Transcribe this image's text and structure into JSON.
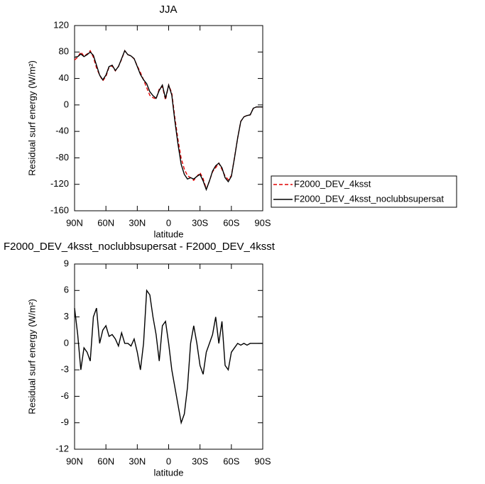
{
  "chart_data": [
    {
      "type": "line",
      "title": "JJA",
      "xlabel": "latitude",
      "ylabel": "Residual surf energy (W/m²)",
      "x": [
        90,
        87,
        84,
        81,
        78,
        75,
        72,
        69,
        66,
        63,
        60,
        57,
        54,
        51,
        48,
        45,
        42,
        39,
        36,
        33,
        30,
        27,
        24,
        21,
        18,
        15,
        12,
        9,
        6,
        3,
        0,
        -3,
        -6,
        -9,
        -12,
        -15,
        -18,
        -21,
        -24,
        -27,
        -30,
        -33,
        -36,
        -39,
        -42,
        -45,
        -48,
        -51,
        -54,
        -57,
        -60,
        -63,
        -66,
        -69,
        -72,
        -75,
        -78,
        -81,
        -84,
        -87,
        -90
      ],
      "series": [
        {
          "name": "F2000_DEV_4ksst",
          "color": "#e00000",
          "style": "dashed",
          "values": [
            68,
            72,
            80,
            73.5,
            77,
            82,
            72,
            56,
            45,
            36.5,
            43,
            57.2,
            59,
            51.5,
            58.3,
            68.8,
            82,
            76,
            74.3,
            69.5,
            59,
            49,
            38,
            26,
            14.5,
            11,
            9,
            24,
            28,
            7.5,
            30,
            18,
            -20,
            -53,
            -81,
            -97,
            -107,
            -110,
            -114,
            -108,
            -102.5,
            -111.5,
            -127,
            -115,
            -101,
            -95,
            -88,
            -97.5,
            -107.5,
            -113,
            -107,
            -79.5,
            -50,
            -24.8,
            -18,
            -15.8,
            -15,
            -5,
            -3,
            -3,
            -3
          ]
        },
        {
          "name": "F2000_DEV_4ksst_noclubbsupersat",
          "color": "#000000",
          "style": "solid",
          "values": [
            72,
            73,
            77,
            73,
            76,
            80,
            75,
            60,
            45,
            38,
            45,
            58,
            60,
            52,
            58,
            70,
            82,
            76,
            74,
            70,
            58,
            46,
            38,
            32,
            20,
            14,
            10,
            22,
            30,
            10,
            30,
            15,
            -25,
            -60,
            -90,
            -105,
            -112,
            -110,
            -112,
            -108,
            -105,
            -115,
            -128,
            -115,
            -100,
            -92,
            -88,
            -95,
            -110,
            -116,
            -108,
            -80,
            -50,
            -25,
            -18,
            -16,
            -15,
            -5,
            -3,
            -3,
            -3
          ]
        }
      ],
      "xlim": [
        90,
        -90
      ],
      "xticks": [
        {
          "value": 90,
          "label": "90N"
        },
        {
          "value": 60,
          "label": "60N"
        },
        {
          "value": 30,
          "label": "30N"
        },
        0,
        {
          "value": -30,
          "label": "30S"
        },
        {
          "value": -60,
          "label": "60S"
        },
        {
          "value": -90,
          "label": "90S"
        }
      ],
      "ylim": [
        -160,
        120
      ],
      "yticks": [
        -160,
        -120,
        -80,
        -40,
        0,
        40,
        80,
        120
      ],
      "legend": "right"
    },
    {
      "type": "line",
      "title": "F2000_DEV_4ksst_noclubbsupersat - F2000_DEV_4ksst",
      "xlabel": "latitude",
      "ylabel": "Residual surf energy (W/m²)",
      "x": [
        90,
        87,
        84,
        81,
        78,
        75,
        72,
        69,
        66,
        63,
        60,
        57,
        54,
        51,
        48,
        45,
        42,
        39,
        36,
        33,
        30,
        27,
        24,
        21,
        18,
        15,
        12,
        9,
        6,
        3,
        0,
        -3,
        -6,
        -9,
        -12,
        -15,
        -18,
        -21,
        -24,
        -27,
        -30,
        -33,
        -36,
        -39,
        -42,
        -45,
        -48,
        -51,
        -54,
        -57,
        -60,
        -63,
        -66,
        -69,
        -72,
        -75,
        -78,
        -81,
        -84,
        -87,
        -90
      ],
      "values": [
        4,
        1,
        -3,
        -0.5,
        -1,
        -2,
        3,
        4,
        0,
        1.5,
        2,
        0.8,
        1,
        0.5,
        -0.3,
        1.2,
        0,
        0,
        -0.3,
        0.5,
        -1,
        -3,
        0,
        6,
        5.5,
        3,
        1,
        -2,
        2,
        2.5,
        0,
        -3,
        -5,
        -7,
        -9,
        -8,
        -5,
        0,
        2,
        0,
        -2.5,
        -3.5,
        -1,
        0,
        1,
        3,
        0,
        2.5,
        -2.5,
        -3,
        -1,
        -0.5,
        0,
        -0.2,
        0,
        -0.2,
        0,
        0,
        0,
        0,
        0
      ],
      "color": "#000000",
      "xlim": [
        90,
        -90
      ],
      "xticks": [
        {
          "value": 90,
          "label": "90N"
        },
        {
          "value": 60,
          "label": "60N"
        },
        {
          "value": 30,
          "label": "30N"
        },
        0,
        {
          "value": -30,
          "label": "30S"
        },
        {
          "value": -60,
          "label": "60S"
        },
        {
          "value": -90,
          "label": "90S"
        }
      ],
      "ylim": [
        -12,
        9
      ],
      "yticks": [
        -12,
        -9,
        -6,
        -3,
        0,
        3,
        6,
        9
      ]
    }
  ]
}
